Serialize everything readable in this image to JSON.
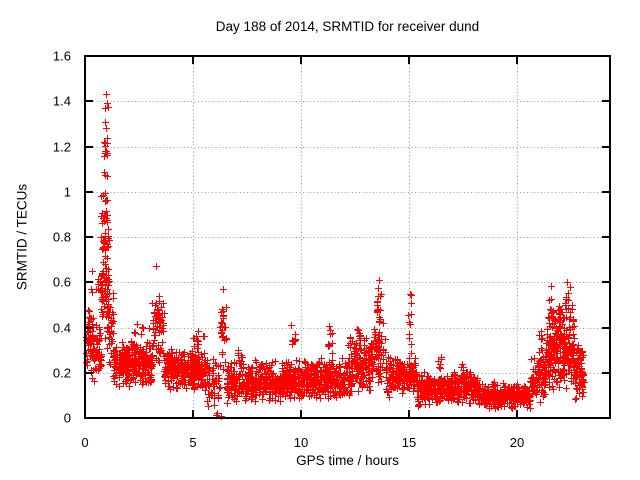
{
  "style": {
    "background": "#ffffff",
    "text_color": "#000000",
    "axis_color": "#000000",
    "grid_color": "#999999",
    "marker_color": "#ff0000"
  },
  "chart_data": {
    "type": "scatter",
    "title": "Day 188 of 2014, SRMTID for receiver dund",
    "xlabel": "GPS time / hours",
    "ylabel": "SRMTID / TECUs",
    "xlim": [
      0,
      24.3
    ],
    "ylim": [
      0,
      1.6
    ],
    "xticks": [
      {
        "v": 0,
        "label": "0"
      },
      {
        "v": 5,
        "label": "5"
      },
      {
        "v": 10,
        "label": "10"
      },
      {
        "v": 15,
        "label": "15"
      },
      {
        "v": 20,
        "label": "20"
      }
    ],
    "yticks": [
      {
        "v": 0,
        "label": "0"
      },
      {
        "v": 0.2,
        "label": "0.2"
      },
      {
        "v": 0.4,
        "label": "0.4"
      },
      {
        "v": 0.6,
        "label": "0.6"
      },
      {
        "v": 0.8,
        "label": "0.8"
      },
      {
        "v": 1,
        "label": "1"
      },
      {
        "v": 1.2,
        "label": "1.2"
      },
      {
        "v": 1.4,
        "label": "1.4"
      },
      {
        "v": 1.6,
        "label": "1.6"
      }
    ],
    "grid": "dotted",
    "legend": "none",
    "marker": "plus",
    "series": [
      {
        "name": "SRMTID",
        "color": "#ff0000"
      }
    ],
    "time_range_hours": [
      0,
      23.1
    ],
    "peaks": [
      {
        "t": 0.95,
        "v": 1.43
      },
      {
        "t": 3.3,
        "v": 0.67
      },
      {
        "t": 6.4,
        "v": 0.57
      },
      {
        "t": 13.6,
        "v": 0.61
      },
      {
        "t": 15.0,
        "v": 0.55
      },
      {
        "t": 21.6,
        "v": 0.59
      },
      {
        "t": 22.3,
        "v": 0.6
      }
    ],
    "scatter_generator": {
      "seed": 20140188,
      "segments": [
        [
          0.02,
          0.4,
          60,
          0.16,
          0.52
        ],
        [
          0.15,
          0.8,
          12,
          0.5,
          0.66
        ],
        [
          0.4,
          0.75,
          45,
          0.15,
          0.42
        ],
        [
          0.72,
          1.1,
          85,
          0.3,
          1.02
        ],
        [
          0.85,
          1.05,
          16,
          0.95,
          1.45
        ],
        [
          1.0,
          1.35,
          40,
          0.22,
          0.62
        ],
        [
          1.3,
          3.1,
          300,
          0.13,
          0.34
        ],
        [
          2.0,
          3.0,
          12,
          0.3,
          0.44
        ],
        [
          3.1,
          3.65,
          60,
          0.22,
          0.56
        ],
        [
          3.65,
          5.55,
          280,
          0.12,
          0.31
        ],
        [
          4.9,
          5.5,
          10,
          0.28,
          0.44
        ],
        [
          5.55,
          6.25,
          55,
          0.04,
          0.26
        ],
        [
          6.25,
          6.55,
          28,
          0.18,
          0.56
        ],
        [
          6.55,
          9.2,
          340,
          0.06,
          0.26
        ],
        [
          7.0,
          7.3,
          8,
          0.22,
          0.33
        ],
        [
          9.2,
          12.4,
          420,
          0.08,
          0.27
        ],
        [
          9.5,
          9.75,
          10,
          0.25,
          0.43
        ],
        [
          11.2,
          11.45,
          10,
          0.25,
          0.42
        ],
        [
          12.1,
          12.35,
          8,
          0.25,
          0.38
        ],
        [
          12.4,
          13.35,
          130,
          0.1,
          0.36
        ],
        [
          12.55,
          12.75,
          8,
          0.3,
          0.46
        ],
        [
          13.35,
          13.9,
          55,
          0.14,
          0.46
        ],
        [
          13.5,
          13.72,
          14,
          0.4,
          0.62
        ],
        [
          13.9,
          15.35,
          180,
          0.09,
          0.28
        ],
        [
          14.95,
          15.12,
          10,
          0.28,
          0.56
        ],
        [
          15.35,
          18.2,
          360,
          0.05,
          0.21
        ],
        [
          16.3,
          16.5,
          6,
          0.18,
          0.28
        ],
        [
          17.4,
          17.6,
          6,
          0.18,
          0.27
        ],
        [
          18.2,
          20.6,
          300,
          0.04,
          0.16
        ],
        [
          20.6,
          21.3,
          90,
          0.06,
          0.3
        ],
        [
          21.0,
          21.15,
          8,
          0.25,
          0.42
        ],
        [
          21.3,
          22.65,
          260,
          0.1,
          0.5
        ],
        [
          21.45,
          21.7,
          12,
          0.4,
          0.59
        ],
        [
          21.85,
          22.05,
          10,
          0.38,
          0.56
        ],
        [
          22.2,
          22.45,
          12,
          0.4,
          0.6
        ],
        [
          22.65,
          23.1,
          70,
          0.06,
          0.33
        ]
      ],
      "extra_points": [
        [
          0.95,
          1.43
        ],
        [
          0.92,
          1.37
        ],
        [
          0.97,
          1.28
        ],
        [
          0.9,
          1.22
        ],
        [
          0.99,
          1.18
        ],
        [
          3.3,
          0.67
        ],
        [
          0.33,
          0.65
        ],
        [
          13.6,
          0.61
        ],
        [
          22.3,
          0.6
        ],
        [
          21.55,
          0.585
        ],
        [
          6.38,
          0.57
        ],
        [
          15.02,
          0.55
        ],
        [
          6.05,
          0.015
        ],
        [
          6.12,
          0.02
        ],
        [
          6.3,
          0.01
        ]
      ]
    }
  }
}
